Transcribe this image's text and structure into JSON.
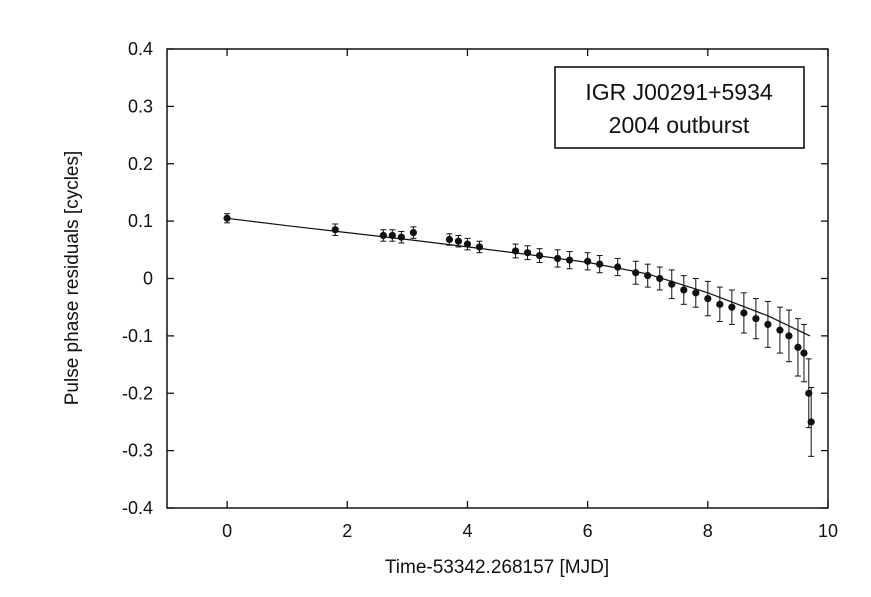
{
  "chart_data": {
    "type": "scatter",
    "xlabel": "Time-53342.268157 [MJD]",
    "ylabel": "Pulse phase residuals [cycles]",
    "xlim": [
      -1,
      10
    ],
    "ylim": [
      -0.4,
      0.4
    ],
    "x_ticks": [
      0,
      2,
      4,
      6,
      8,
      10
    ],
    "x_tick_labels": [
      "0",
      "2",
      "4",
      "6",
      "8",
      "10"
    ],
    "y_ticks": [
      0.4,
      0.3,
      0.2,
      0.1,
      0,
      -0.1,
      -0.2,
      -0.3,
      -0.4
    ],
    "y_tick_labels": [
      "0.4",
      "0.3",
      "0.2",
      "0.1",
      "0",
      "-0.1",
      "-0.2",
      "-0.3",
      "-0.4"
    ],
    "grid": false,
    "annotation": {
      "lines": [
        "IGR J00291+5934",
        "2004 outburst"
      ],
      "placement": "top-right"
    },
    "series": [
      {
        "style": "points-with-errorbars",
        "x": [
          0.0,
          1.8,
          2.6,
          2.75,
          2.9,
          3.1,
          3.7,
          3.85,
          4.0,
          4.2,
          4.8,
          5.0,
          5.2,
          5.5,
          5.7,
          6.0,
          6.2,
          6.5,
          6.8,
          7.0,
          7.2,
          7.4,
          7.6,
          7.8,
          8.0,
          8.2,
          8.4,
          8.6,
          8.8,
          9.0,
          9.2,
          9.35,
          9.5,
          9.6,
          9.68,
          9.72
        ],
        "y": [
          0.105,
          0.085,
          0.075,
          0.075,
          0.072,
          0.08,
          0.068,
          0.065,
          0.06,
          0.055,
          0.048,
          0.045,
          0.04,
          0.035,
          0.032,
          0.03,
          0.025,
          0.02,
          0.01,
          0.005,
          0.0,
          -0.01,
          -0.02,
          -0.025,
          -0.035,
          -0.045,
          -0.05,
          -0.06,
          -0.07,
          -0.08,
          -0.09,
          -0.1,
          -0.12,
          -0.13,
          -0.2,
          -0.25
        ],
        "yerr": [
          0.008,
          0.01,
          0.01,
          0.01,
          0.01,
          0.01,
          0.01,
          0.01,
          0.01,
          0.01,
          0.012,
          0.012,
          0.012,
          0.015,
          0.015,
          0.015,
          0.015,
          0.015,
          0.02,
          0.02,
          0.02,
          0.025,
          0.025,
          0.025,
          0.03,
          0.03,
          0.03,
          0.035,
          0.035,
          0.04,
          0.04,
          0.045,
          0.05,
          0.05,
          0.06,
          0.06
        ]
      }
    ],
    "fit_curve": {
      "style": "line",
      "x": [
        0,
        1,
        2,
        3,
        4,
        5,
        6,
        7,
        8,
        9,
        9.7
      ],
      "y": [
        0.105,
        0.092,
        0.08,
        0.068,
        0.055,
        0.042,
        0.028,
        0.008,
        -0.025,
        -0.065,
        -0.1
      ]
    }
  }
}
